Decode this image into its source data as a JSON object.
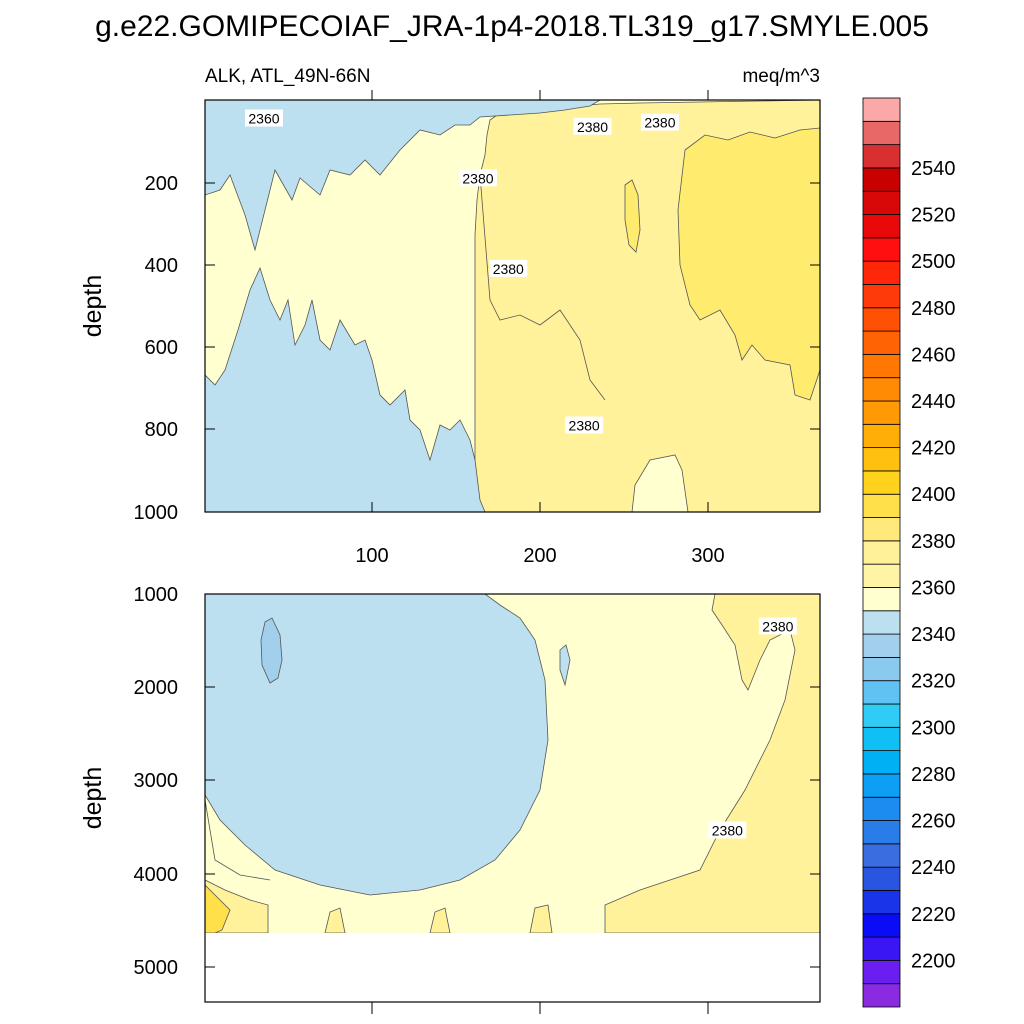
{
  "chart_data": [
    {
      "type": "contour",
      "title": "g.e22.GOMIPECOIAF_JRA-1p4-2018.TL319_g17.SMYLE.005",
      "left_label": "ALK, ATL_49N-66N",
      "right_label": "meq/m^3",
      "xlabel": "",
      "ylabel": "depth",
      "xlim": [
        0,
        365
      ],
      "ylim": [
        1000,
        0
      ],
      "xticks": [
        100,
        200,
        300
      ],
      "yticks": [
        200,
        400,
        600,
        800,
        1000
      ],
      "contour_labels": [
        {
          "text": "2360",
          "x": 35,
          "depth": 45
        },
        {
          "text": "2380",
          "x": 230,
          "depth": 65
        },
        {
          "text": "2380",
          "x": 270,
          "depth": 55
        },
        {
          "text": "2380",
          "x": 162,
          "depth": 190
        },
        {
          "text": "2380",
          "x": 180,
          "depth": 410
        },
        {
          "text": "2380",
          "x": 225,
          "depth": 790
        }
      ]
    },
    {
      "type": "contour",
      "xlabel": "",
      "ylabel": "depth",
      "xlim": [
        0,
        365
      ],
      "ylim": [
        5400,
        1000
      ],
      "yticks": [
        1000,
        2000,
        3000,
        4000,
        5000
      ],
      "contour_labels": [
        {
          "text": "2380",
          "x": 340,
          "depth": 1350
        },
        {
          "text": "2380",
          "x": 310,
          "depth": 3550
        }
      ]
    }
  ],
  "colorbar": {
    "labels": [
      "2200",
      "2220",
      "2240",
      "2260",
      "2280",
      "2300",
      "2320",
      "2340",
      "2360",
      "2380",
      "2400",
      "2420",
      "2440",
      "2460",
      "2480",
      "2500",
      "2520",
      "2540"
    ],
    "colors": [
      "#8a2be2",
      "#6a1ff0",
      "#3a16f5",
      "#0a0cf5",
      "#1a35e8",
      "#2a55e0",
      "#3a6ee0",
      "#2a7de8",
      "#1d8cf0",
      "#0d9ef5",
      "#00b0f5",
      "#10c0f5",
      "#30ccf5",
      "#60c2f2",
      "#8acaee",
      "#a2d0ec",
      "#bde0f0",
      "#ffffcf",
      "#fff3a5",
      "#fff09a",
      "#ffe97a",
      "#ffe04a",
      "#ffd21c",
      "#ffc010",
      "#ffae08",
      "#ff9a06",
      "#ff8a04",
      "#ff7804",
      "#ff6404",
      "#ff5004",
      "#ff3a0a",
      "#ff260a",
      "#ff0f0f",
      "#e80a0a",
      "#d80808",
      "#c80000",
      "#d83030",
      "#e86868",
      "#faa8a8"
    ]
  }
}
